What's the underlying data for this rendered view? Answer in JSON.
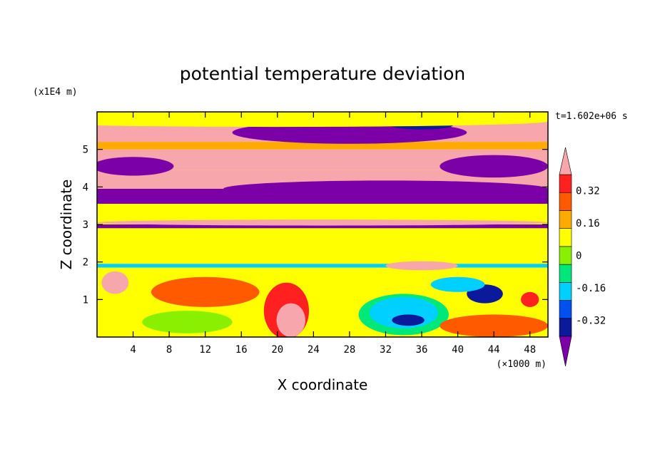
{
  "chart_data": {
    "type": "heatmap",
    "title": "potential temperature deviation",
    "xlabel": "X coordinate",
    "ylabel": "Z coordinate",
    "x_unit": "(×1000 m)",
    "y_unit": "(x1E4 m)",
    "time_label": "t=1.602e+06 s",
    "xlim": [
      0,
      50
    ],
    "ylim": [
      0,
      6
    ],
    "x_ticks": [
      4,
      8,
      12,
      16,
      20,
      24,
      28,
      32,
      36,
      40,
      44,
      48
    ],
    "y_ticks": [
      1,
      2,
      3,
      4,
      5
    ],
    "colorbar": {
      "levels": [
        -0.4,
        -0.32,
        -0.24,
        -0.16,
        -0.08,
        0,
        0.08,
        0.16,
        0.24,
        0.32,
        0.4
      ],
      "colors": [
        "#7b00a8",
        "#0a1a9a",
        "#0050f0",
        "#00d0ff",
        "#00e87a",
        "#88f000",
        "#ffff00",
        "#ffaa00",
        "#ff5a00",
        "#ff2020",
        "#f7a6ac"
      ],
      "tick_labels": [
        "0.32",
        "0.16",
        "0",
        "-0.16",
        "-0.32"
      ],
      "tick_values": [
        0.32,
        0.16,
        0,
        -0.16,
        -0.32
      ],
      "extend": "both"
    },
    "background_value": 0.04,
    "bands": [
      {
        "z": [
          5.2,
          5.75
        ],
        "x": [
          0,
          50
        ],
        "value": 0.44
      },
      {
        "z": [
          5.0,
          5.2
        ],
        "x": [
          0,
          50
        ],
        "value": 0.12
      },
      {
        "z": [
          4.45,
          5.0
        ],
        "x": [
          0,
          50
        ],
        "value": 0.44
      },
      {
        "z": [
          3.95,
          4.45
        ],
        "x": [
          0,
          50
        ],
        "value": 0.44
      },
      {
        "z": [
          3.55,
          3.95
        ],
        "x": [
          0,
          50
        ],
        "value": -0.44
      },
      {
        "z": [
          3.3,
          3.55
        ],
        "x": [
          0,
          50
        ],
        "value": 0.04
      },
      {
        "z": [
          3.0,
          3.3
        ],
        "x": [
          0,
          50
        ],
        "value": 0.04
      },
      {
        "z": [
          2.9,
          3.0
        ],
        "x": [
          0,
          50
        ],
        "value": -0.44
      },
      {
        "z": [
          1.85,
          1.95
        ],
        "x": [
          0,
          50
        ],
        "value": -0.2
      },
      {
        "z": [
          0,
          1.85
        ],
        "x": [
          0,
          50
        ],
        "value": 0.04
      }
    ],
    "features": [
      {
        "shape": "ellipse",
        "cx": 28.0,
        "cz": 5.45,
        "rx": 13.0,
        "rz": 0.3,
        "value": -0.44
      },
      {
        "shape": "ellipse",
        "cx": 36.0,
        "cz": 5.65,
        "rx": 3.5,
        "rz": 0.12,
        "value": -0.36
      },
      {
        "shape": "ellipse",
        "cx": 4.0,
        "cz": 4.55,
        "rx": 4.5,
        "rz": 0.25,
        "value": -0.44
      },
      {
        "shape": "ellipse",
        "cx": 44.0,
        "cz": 4.55,
        "rx": 6.0,
        "rz": 0.3,
        "value": -0.44
      },
      {
        "shape": "ellipse",
        "cx": 32.0,
        "cz": 3.95,
        "rx": 18.0,
        "rz": 0.22,
        "value": -0.44
      },
      {
        "shape": "ellipse",
        "cx": 20.0,
        "cz": 5.75,
        "rx": 30.0,
        "rz": 0.15,
        "value": 0.04
      },
      {
        "shape": "ellipse",
        "cx": 25.0,
        "cz": 3.05,
        "rx": 25.0,
        "rz": 0.08,
        "value": 0.44
      },
      {
        "shape": "ellipse",
        "cx": 36.0,
        "cz": 1.9,
        "rx": 4.0,
        "rz": 0.12,
        "value": 0.44
      },
      {
        "shape": "ellipse",
        "cx": 34.0,
        "cz": 0.6,
        "rx": 5.0,
        "rz": 0.55,
        "value": -0.16
      },
      {
        "shape": "ellipse",
        "cx": 34.0,
        "cz": 0.65,
        "rx": 3.8,
        "rz": 0.42,
        "value": -0.24
      },
      {
        "shape": "ellipse",
        "cx": 34.5,
        "cz": 0.45,
        "rx": 1.8,
        "rz": 0.15,
        "value": -0.36
      },
      {
        "shape": "ellipse",
        "cx": 21.0,
        "cz": 0.7,
        "rx": 2.5,
        "rz": 0.75,
        "value": 0.24
      },
      {
        "shape": "ellipse",
        "cx": 21.5,
        "cz": 0.45,
        "rx": 1.6,
        "rz": 0.45,
        "value": 0.32
      },
      {
        "shape": "ellipse",
        "cx": 2.0,
        "cz": 1.45,
        "rx": 1.5,
        "rz": 0.3,
        "value": 0.32
      },
      {
        "shape": "ellipse",
        "cx": 2.0,
        "cz": 1.45,
        "rx": 0.8,
        "rz": 0.15,
        "value": 0.44
      },
      {
        "shape": "ellipse",
        "cx": 48.0,
        "cz": 1.0,
        "rx": 1.0,
        "rz": 0.2,
        "value": 0.24
      },
      {
        "shape": "ellipse",
        "cx": 43.0,
        "cz": 1.15,
        "rx": 2.0,
        "rz": 0.25,
        "value": -0.36
      },
      {
        "shape": "ellipse",
        "cx": 40.0,
        "cz": 1.4,
        "rx": 3.0,
        "rz": 0.2,
        "value": -0.2
      },
      {
        "shape": "ellipse",
        "cx": 12.0,
        "cz": 1.2,
        "rx": 6.0,
        "rz": 0.4,
        "value": 0.16
      },
      {
        "shape": "ellipse",
        "cx": 44.0,
        "cz": 0.3,
        "rx": 6.0,
        "rz": 0.3,
        "value": 0.16
      },
      {
        "shape": "ellipse",
        "cx": 10.0,
        "cz": 0.4,
        "rx": 5.0,
        "rz": 0.3,
        "value": -0.08
      }
    ]
  }
}
